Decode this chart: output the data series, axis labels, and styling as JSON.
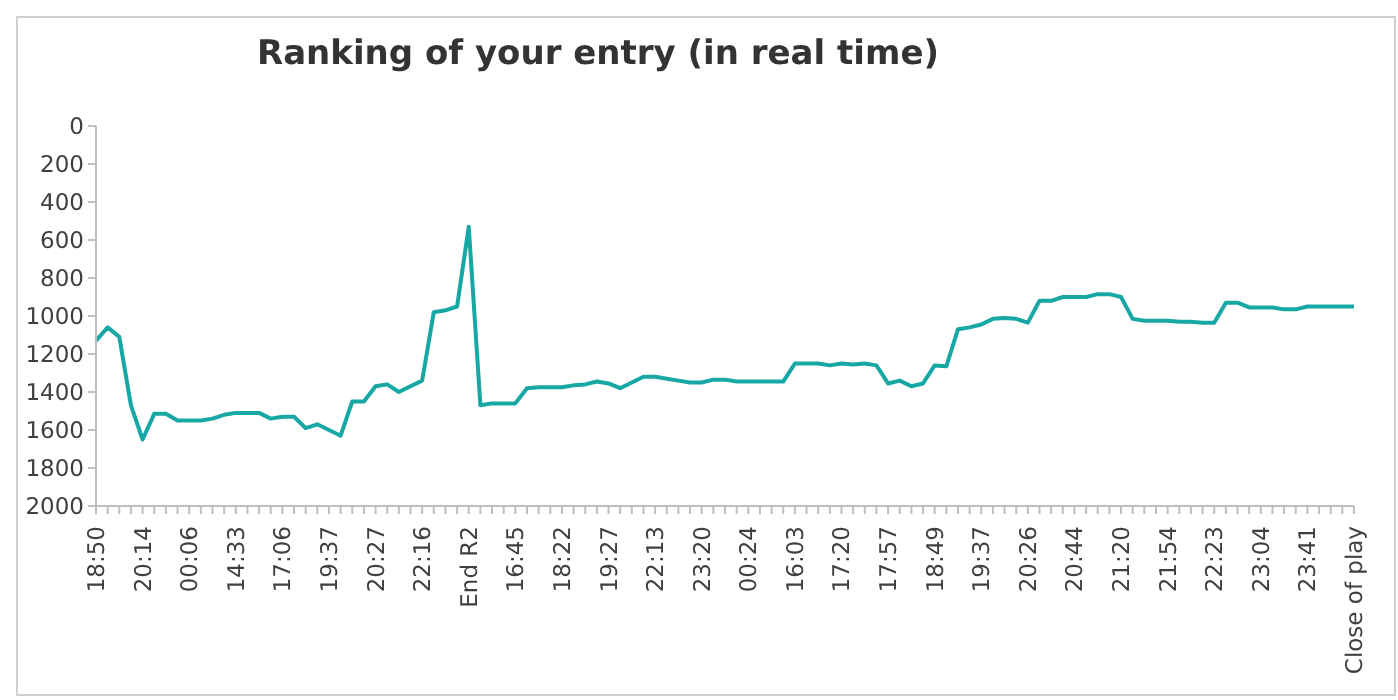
{
  "chart_data": {
    "type": "line",
    "title": "Ranking of your entry (in real time)",
    "categories": [
      "18:50",
      null,
      null,
      null,
      "20:14",
      null,
      null,
      null,
      "00:06",
      null,
      null,
      null,
      "14:33",
      null,
      null,
      null,
      "17:06",
      null,
      null,
      null,
      "19:37",
      null,
      null,
      null,
      "20:27",
      null,
      null,
      null,
      "22:16",
      null,
      null,
      null,
      "End R2",
      null,
      null,
      null,
      "16:45",
      null,
      null,
      null,
      "18:22",
      null,
      null,
      null,
      "19:27",
      null,
      null,
      null,
      "22:13",
      null,
      null,
      null,
      "23:20",
      null,
      null,
      null,
      "00:24",
      null,
      null,
      null,
      "16:03",
      null,
      null,
      null,
      "17:20",
      null,
      null,
      null,
      "17:57",
      null,
      null,
      null,
      "18:49",
      null,
      null,
      null,
      "19:37",
      null,
      null,
      null,
      "20:26",
      null,
      null,
      null,
      "20:44",
      null,
      null,
      null,
      "21:20",
      null,
      null,
      null,
      "21:54",
      null,
      null,
      null,
      "22:23",
      null,
      null,
      null,
      "23:04",
      null,
      null,
      null,
      "23:41",
      null,
      null,
      null,
      "Close of play"
    ],
    "series": [
      {
        "color": "#17a8a6",
        "values": [
          1130,
          1060,
          1110,
          1470,
          1650,
          1515,
          1515,
          1550,
          1550,
          1550,
          1540,
          1520,
          1510,
          1510,
          1510,
          1540,
          1530,
          1530,
          1590,
          1570,
          1600,
          1630,
          1450,
          1450,
          1370,
          1360,
          1400,
          1370,
          1340,
          980,
          970,
          950,
          530,
          1470,
          1460,
          1460,
          1460,
          1380,
          1375,
          1375,
          1375,
          1365,
          1360,
          1345,
          1355,
          1380,
          1350,
          1320,
          1320,
          1330,
          1340,
          1350,
          1350,
          1335,
          1335,
          1345,
          1345,
          1345,
          1345,
          1345,
          1250,
          1250,
          1250,
          1260,
          1250,
          1255,
          1250,
          1260,
          1355,
          1340,
          1370,
          1355,
          1260,
          1265,
          1070,
          1060,
          1045,
          1015,
          1010,
          1015,
          1035,
          920,
          920,
          900,
          900,
          900,
          885,
          885,
          900,
          1015,
          1025,
          1025,
          1025,
          1030,
          1030,
          1035,
          1035,
          930,
          930,
          955,
          955,
          955,
          965,
          965,
          950,
          950,
          950,
          950,
          950
        ]
      }
    ],
    "ylim": [
      2000,
      0
    ],
    "yticks": [
      0,
      200,
      400,
      600,
      800,
      1000,
      1200,
      1400,
      1600,
      1800,
      2000
    ],
    "grid": false,
    "line_style": "solid"
  }
}
